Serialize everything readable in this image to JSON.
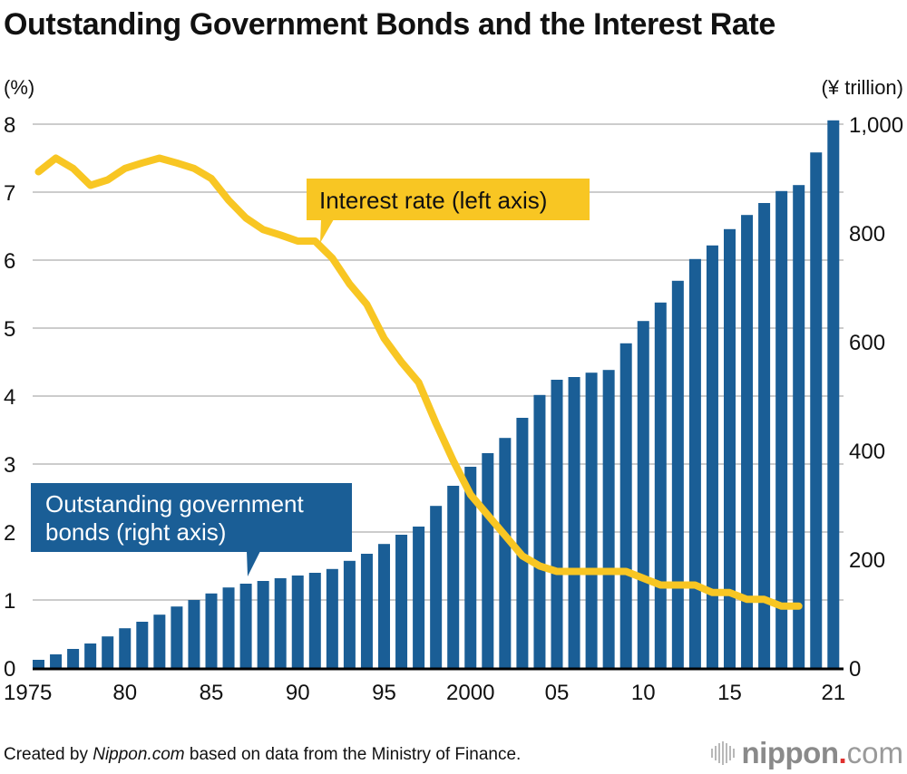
{
  "title": "Outstanding Government Bonds and the Interest Rate",
  "footer": {
    "prefix": "Created by ",
    "source_italic": "Nippon.com",
    "suffix": " based on data from the Ministry of Finance."
  },
  "logo": {
    "name": "nippon",
    "dot": ".",
    "tld": "com",
    "icon": "sound-wave-icon"
  },
  "colors": {
    "bars": "#1a5e96",
    "line": "#f8c623",
    "grid": "#cccccc",
    "axis": "#000000"
  },
  "chart_data": {
    "type": "bar",
    "title": "Outstanding Government Bonds and the Interest Rate",
    "left_axis_label": "(%)",
    "right_axis_label": "(¥ trillion)",
    "left_ylim": [
      0,
      8
    ],
    "right_ylim": [
      0,
      1000
    ],
    "left_ticks": [
      "0",
      "1",
      "2",
      "3",
      "4",
      "5",
      "6",
      "7",
      "8"
    ],
    "right_ticks": [
      "0",
      "200",
      "400",
      "600",
      "800",
      "1,000"
    ],
    "right_tick_values": [
      0,
      200,
      400,
      600,
      800,
      1000
    ],
    "grid": true,
    "x_tick_labels": [
      {
        "year": 1975,
        "label": "1975"
      },
      {
        "year": 1980,
        "label": "80"
      },
      {
        "year": 1985,
        "label": "85"
      },
      {
        "year": 1990,
        "label": "90"
      },
      {
        "year": 1995,
        "label": "95"
      },
      {
        "year": 2000,
        "label": "2000"
      },
      {
        "year": 2005,
        "label": "05"
      },
      {
        "year": 2010,
        "label": "10"
      },
      {
        "year": 2015,
        "label": "15"
      },
      {
        "year": 2021,
        "label": "21"
      }
    ],
    "years": [
      1975,
      1976,
      1977,
      1978,
      1979,
      1980,
      1981,
      1982,
      1983,
      1984,
      1985,
      1986,
      1987,
      1988,
      1989,
      1990,
      1991,
      1992,
      1993,
      1994,
      1995,
      1996,
      1997,
      1998,
      1999,
      2000,
      2001,
      2002,
      2003,
      2004,
      2005,
      2006,
      2007,
      2008,
      2009,
      2010,
      2011,
      2012,
      2013,
      2014,
      2015,
      2016,
      2017,
      2018,
      2019,
      2020,
      2021
    ],
    "series": [
      {
        "name": "Outstanding government bonds (right axis)",
        "type": "bar",
        "axis": "right",
        "unit": "¥ trillion",
        "values": [
          15,
          25,
          35,
          45,
          58,
          73,
          85,
          98,
          113,
          125,
          137,
          148,
          155,
          160,
          165,
          170,
          175,
          182,
          197,
          210,
          228,
          245,
          260,
          298,
          335,
          370,
          395,
          423,
          460,
          502,
          530,
          535,
          543,
          548,
          597,
          638,
          672,
          712,
          752,
          777,
          807,
          833,
          855,
          877,
          888,
          948,
          1007
        ]
      },
      {
        "name": "Interest rate (left axis)",
        "type": "line",
        "axis": "left",
        "unit": "%",
        "values": [
          7.3,
          7.5,
          7.35,
          7.1,
          7.18,
          7.35,
          7.43,
          7.5,
          7.43,
          7.35,
          7.2,
          6.88,
          6.62,
          6.45,
          6.37,
          6.28,
          6.28,
          6.03,
          5.65,
          5.35,
          4.85,
          4.5,
          4.2,
          3.6,
          3.05,
          2.55,
          2.25,
          1.95,
          1.65,
          1.5,
          1.42,
          1.42,
          1.42,
          1.42,
          1.42,
          1.32,
          1.22,
          1.22,
          1.22,
          1.11,
          1.11,
          1.01,
          1.01,
          0.91,
          0.91,
          null,
          null
        ]
      }
    ],
    "annotations": {
      "line_callout": "Interest rate (left axis)",
      "bar_callout_line1": "Outstanding government",
      "bar_callout_line2": "bonds (right axis)"
    }
  }
}
